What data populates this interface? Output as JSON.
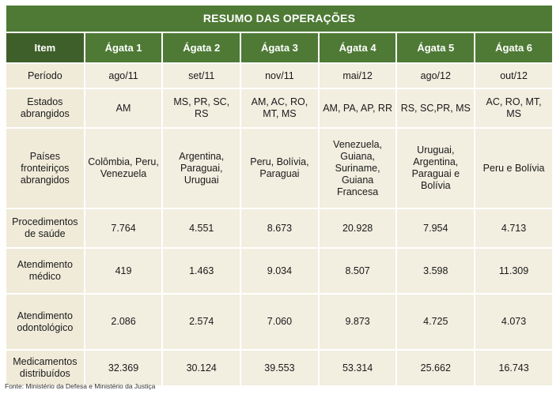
{
  "table": {
    "title": "RESUMO DAS OPERAÇÕES",
    "header": [
      "Item",
      "Ágata 1",
      "Ágata 2",
      "Ágata 3",
      "Ágata 4",
      "Ágata 5",
      "Ágata 6"
    ],
    "rows": [
      {
        "label": "Período",
        "values": [
          "ago/11",
          "set/11",
          "nov/11",
          "mai/12",
          "ago/12",
          "out/12"
        ]
      },
      {
        "label": "Estados abrangidos",
        "values": [
          "AM",
          "MS, PR, SC, RS",
          "AM, AC, RO, MT, MS",
          "AM, PA, AP, RR",
          "RS, SC,PR, MS",
          "AC, RO, MT, MS"
        ]
      },
      {
        "label": "Países fronteiriços abrangidos",
        "values": [
          "Colômbia, Peru, Venezuela",
          "Argentina, Paraguai, Uruguai",
          "Peru, Bolívia, Paraguai",
          "Venezuela, Guiana, Suriname, Guiana Francesa",
          "Uruguai, Argentina, Paraguai e Bolívia",
          "Peru e Bolívia"
        ]
      },
      {
        "label": "Procedimentos de saúde",
        "values": [
          "7.764",
          "4.551",
          "8.673",
          "20.928",
          "7.954",
          "4.713"
        ]
      },
      {
        "label": "Atendimento médico",
        "values": [
          "419",
          "1.463",
          "9.034",
          "8.507",
          "3.598",
          "11.309"
        ]
      },
      {
        "label": "Atendimento odontológico",
        "values": [
          "2.086",
          "2.574",
          "7.060",
          "9.873",
          "4.725",
          "4.073"
        ]
      },
      {
        "label": "Medicamentos distribuídos",
        "values": [
          "32.369",
          "30.124",
          "39.553",
          "53.314",
          "25.662",
          "16.743"
        ]
      }
    ],
    "source": "Fonte: Ministério da Defesa e Ministério da Justiça"
  },
  "colors": {
    "header_green": "#4e7a35",
    "item_green": "#3f5f2a",
    "cell_beige": "#f2eee0"
  }
}
